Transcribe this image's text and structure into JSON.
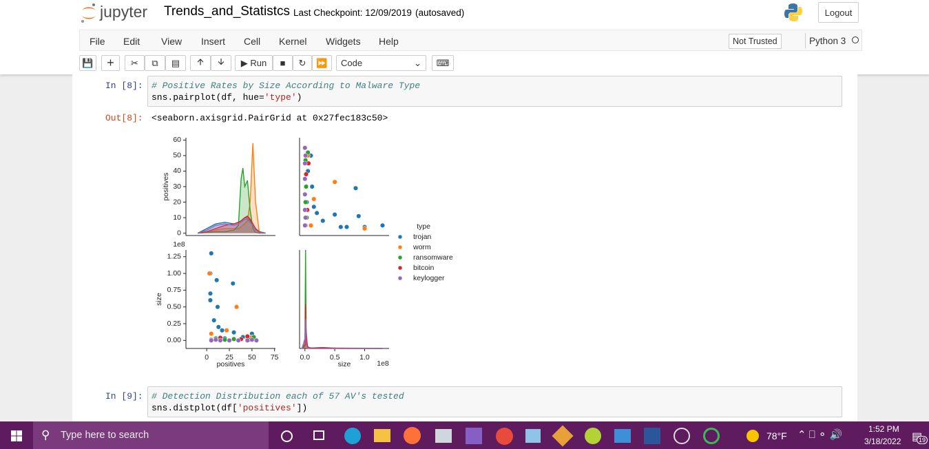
{
  "header": {
    "logo": "jupyter",
    "title": "Trends_and_Statistcs",
    "checkpoint": "Last Checkpoint: 12/09/2019",
    "autosaved": "(autosaved)",
    "logout": "Logout"
  },
  "menu": [
    "File",
    "Edit",
    "View",
    "Insert",
    "Cell",
    "Kernel",
    "Widgets",
    "Help"
  ],
  "trust": "Not Trusted",
  "kernel": "Python 3",
  "toolbar": {
    "run": "Run",
    "cell_type": "Code"
  },
  "cells": [
    {
      "prompt": "In [8]:",
      "comment": "# Positive Rates by Size According to Malware Type",
      "code": [
        "sns.pairplot(df, hue=",
        "'type'",
        ")"
      ],
      "out_prompt": "Out[8]:",
      "output": "<seaborn.axisgrid.PairGrid at 0x27fec183c50>"
    },
    {
      "prompt": "In [9]:",
      "comment": "# Detection Distribution each of 57 AV's tested",
      "code": [
        "sns.distplot(df[",
        "'positives'",
        "])"
      ]
    }
  ],
  "chart_data": [
    {
      "type": "kde",
      "ylabel": "positives",
      "xlim": [
        -23,
        76
      ],
      "ylim": [
        -1.5,
        61.5
      ],
      "yticks": [
        0,
        10,
        20,
        30,
        40,
        50,
        60
      ],
      "x": [
        -10,
        0,
        10,
        20,
        30,
        35,
        38,
        40,
        42,
        45,
        48,
        51,
        54,
        58,
        65
      ],
      "series": [
        {
          "color": "#1f77b4",
          "values": [
            0,
            3,
            6,
            7,
            6,
            7,
            8,
            9,
            10,
            10,
            8,
            6,
            3,
            1,
            0
          ]
        },
        {
          "color": "#ff7f0e",
          "values": [
            0,
            0.5,
            2,
            3,
            3,
            3,
            4,
            5,
            6,
            8,
            20,
            58,
            20,
            1,
            0
          ]
        },
        {
          "color": "#2ca02c",
          "values": [
            0,
            0.5,
            1,
            1,
            2,
            5,
            35,
            42,
            30,
            34,
            15,
            3,
            0.5,
            0,
            0
          ]
        },
        {
          "color": "#d62728",
          "values": [
            0,
            1,
            3,
            5,
            6,
            7,
            8,
            9,
            10,
            11,
            9,
            6,
            3,
            1,
            0
          ]
        },
        {
          "color": "#9467bd",
          "values": [
            0,
            2,
            5,
            6,
            5,
            6,
            7,
            8,
            9,
            9,
            7,
            5,
            2,
            0.5,
            0
          ]
        }
      ]
    },
    {
      "type": "scatter",
      "legend_title": "type",
      "xlim": [
        -0.09,
        1.41
      ],
      "ylim": [
        -1.5,
        61.5
      ],
      "series": [
        {
          "name": "trojan",
          "color": "#1f77b4",
          "x": [
            0.1,
            0.12,
            0.15,
            0.2,
            0.3,
            0.5,
            0.6,
            0.85,
            0.9,
            1.3,
            0.05,
            0.03,
            0.7,
            1.0
          ],
          "values": [
            50,
            30,
            17,
            13,
            8,
            12,
            4,
            29,
            11,
            5,
            40,
            20,
            4,
            4
          ]
        },
        {
          "name": "worm",
          "color": "#ff7f0e",
          "x": [
            0.5,
            0.15,
            0.05,
            0.1,
            1.0,
            0.02
          ],
          "values": [
            33,
            22,
            50,
            5,
            3,
            45
          ]
        },
        {
          "name": "ransomware",
          "color": "#2ca02c",
          "x": [
            0.01,
            0.02,
            0.03,
            0.05,
            0.01
          ],
          "values": [
            47,
            30,
            10,
            52,
            20
          ]
        },
        {
          "name": "bitcoin",
          "color": "#d62728",
          "x": [
            0.02,
            0.04,
            0.01,
            0.06
          ],
          "values": [
            38,
            15,
            5,
            45
          ]
        },
        {
          "name": "keylogger",
          "color": "#9467bd",
          "x": [
            0,
            0,
            0,
            0,
            0,
            0,
            0.01,
            0.01
          ],
          "values": [
            55,
            45,
            35,
            25,
            15,
            5,
            50,
            10
          ]
        }
      ]
    },
    {
      "type": "scatter",
      "xlabel": "positives",
      "ylabel": "size",
      "y_offset": "1e8",
      "xlim": [
        -23,
        76
      ],
      "ylim": [
        -0.12,
        1.35
      ],
      "xticks": [
        0,
        25,
        50,
        75
      ],
      "yticks": [
        {
          "value": 0,
          "label": "0.00"
        },
        0.25,
        {
          "value": 0.5,
          "label": "0.50"
        },
        0.75,
        {
          "value": 1,
          "label": "1.00"
        },
        1.25
      ],
      "series": [
        {
          "color": "#1f77b4",
          "x": [
            50,
            30,
            17,
            13,
            8,
            12,
            4,
            29,
            11,
            5,
            40,
            20,
            4,
            4
          ],
          "values": [
            0.1,
            0.12,
            0.15,
            0.2,
            0.3,
            0.5,
            0.6,
            0.85,
            0.9,
            1.3,
            0.05,
            0.03,
            0.7,
            1.0
          ]
        },
        {
          "color": "#ff7f0e",
          "x": [
            33,
            22,
            50,
            5,
            3,
            45
          ],
          "values": [
            0.5,
            0.15,
            0.05,
            0.1,
            1.0,
            0.02
          ]
        },
        {
          "color": "#2ca02c",
          "x": [
            47,
            30,
            10,
            52,
            20
          ],
          "values": [
            0.01,
            0.02,
            0.03,
            0.05,
            0.01
          ]
        },
        {
          "color": "#d62728",
          "x": [
            38,
            15,
            5,
            45
          ],
          "values": [
            0.02,
            0.04,
            0.01,
            0.06
          ]
        },
        {
          "color": "#9467bd",
          "x": [
            55,
            45,
            35,
            25,
            15,
            5,
            50,
            10
          ],
          "values": [
            0,
            0,
            0,
            0,
            0,
            0,
            0.01,
            0.01
          ]
        }
      ]
    },
    {
      "type": "kde",
      "xlabel": "size",
      "x_offset": "1e8",
      "xlim": [
        -0.09,
        1.41
      ],
      "ylim": [
        0,
        100
      ],
      "xticks": [
        {
          "value": 0,
          "label": "0.0"
        },
        0.5,
        {
          "value": 1,
          "label": "1.0"
        }
      ],
      "x": [
        -0.05,
        0,
        0.01,
        0.02,
        0.04,
        0.06,
        0.1,
        0.3,
        0.6,
        1.0,
        1.3
      ],
      "series": [
        {
          "color": "#1f77b4",
          "values": [
            0,
            2,
            5,
            4,
            2,
            1,
            0.5,
            0.3,
            0.2,
            0.2,
            0
          ]
        },
        {
          "color": "#ff7f0e",
          "values": [
            0,
            2,
            6,
            5,
            3,
            1,
            0.5,
            0.5,
            0.5,
            0.3,
            0
          ]
        },
        {
          "color": "#2ca02c",
          "values": [
            0,
            5,
            100,
            20,
            2,
            0.5,
            0,
            0,
            0,
            0,
            0
          ]
        },
        {
          "color": "#d62728",
          "values": [
            0,
            3,
            45,
            15,
            3,
            1,
            0.5,
            1,
            0,
            0,
            0
          ]
        },
        {
          "color": "#9467bd",
          "values": [
            0,
            10,
            30,
            5,
            1,
            0,
            0,
            0,
            0,
            0,
            0
          ]
        }
      ]
    }
  ],
  "taskbar": {
    "search": "Type here to search",
    "temperature": "78°F",
    "time": "1:52 PM",
    "date": "3/18/2022",
    "badge": "19"
  }
}
